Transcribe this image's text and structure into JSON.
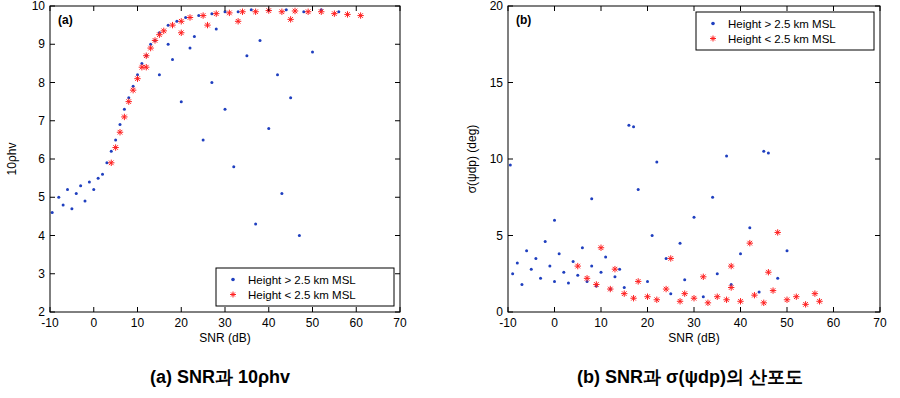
{
  "chart_data": [
    {
      "type": "scatter",
      "title": "(a) SNR과 10ρhv",
      "annotations": [
        "(a)"
      ],
      "x_label": "SNR (dB)",
      "y_label": "10ρhv",
      "xlim": [
        -10,
        70
      ],
      "xticks": [
        -10,
        0,
        10,
        20,
        30,
        40,
        50,
        60,
        70
      ],
      "ylim": [
        2,
        10
      ],
      "yticks": [
        2,
        3,
        4,
        5,
        6,
        7,
        8,
        9,
        10
      ],
      "grid": false,
      "legend": "lower right",
      "series": [
        {
          "name": "Height > 2.5 km MSL",
          "color": "#1f3fbf",
          "marker": "dot",
          "x": [
            -9.5,
            -8,
            -7,
            -6,
            -5,
            -4,
            -3,
            -2,
            -1,
            0,
            1,
            2,
            3,
            4,
            5,
            6,
            7,
            8,
            9,
            10,
            11,
            12,
            13,
            14,
            15,
            17,
            19,
            21,
            24,
            27,
            30,
            33,
            36,
            40,
            44,
            48,
            52,
            56,
            15,
            18,
            20,
            22,
            25,
            27,
            30,
            32,
            35,
            37,
            40,
            42,
            45,
            47,
            50,
            17,
            23,
            28,
            38,
            43
          ],
          "values": [
            4.6,
            5.0,
            4.8,
            5.2,
            4.7,
            5.1,
            5.3,
            4.9,
            5.4,
            5.2,
            5.5,
            5.6,
            5.9,
            6.2,
            6.5,
            6.9,
            7.3,
            7.6,
            7.9,
            8.2,
            8.5,
            8.7,
            9.0,
            9.1,
            9.3,
            9.5,
            9.6,
            9.7,
            9.75,
            9.8,
            9.85,
            9.85,
            9.9,
            9.88,
            9.9,
            9.85,
            9.9,
            9.85,
            8.2,
            8.6,
            7.5,
            8.9,
            6.5,
            8.0,
            7.3,
            5.8,
            8.7,
            4.3,
            6.8,
            8.2,
            7.6,
            4.0,
            8.8,
            9.0,
            9.2,
            9.4,
            9.1,
            5.1
          ]
        },
        {
          "name": "Height < 2.5 km MSL",
          "color": "#ff2020",
          "marker": "star",
          "x": [
            4,
            5,
            6,
            7,
            8,
            9,
            10,
            11,
            12,
            12,
            13,
            14,
            15,
            16,
            18,
            20,
            20,
            22,
            25,
            26,
            28,
            31,
            33,
            34,
            37,
            40,
            43,
            45,
            46,
            49,
            52,
            55,
            58,
            61
          ],
          "values": [
            5.9,
            6.3,
            6.7,
            7.1,
            7.5,
            7.8,
            8.1,
            8.4,
            8.7,
            8.4,
            8.9,
            9.1,
            9.25,
            9.35,
            9.5,
            9.6,
            9.3,
            9.7,
            9.75,
            9.5,
            9.8,
            9.82,
            9.6,
            9.85,
            9.85,
            9.88,
            9.85,
            9.65,
            9.87,
            9.85,
            9.85,
            9.8,
            9.78,
            9.75
          ]
        }
      ]
    },
    {
      "type": "scatter",
      "title": "(b) SNR과 σ(ψdp)의 산포도",
      "annotations": [
        "(b)"
      ],
      "x_label": "SNR (dB)",
      "y_label": "σ(ψdp) (deg)",
      "xlim": [
        -10,
        70
      ],
      "xticks": [
        -10,
        0,
        10,
        20,
        30,
        40,
        50,
        60,
        70
      ],
      "ylim": [
        0,
        20
      ],
      "yticks": [
        0,
        5,
        10,
        15,
        20
      ],
      "grid": false,
      "legend": "upper right",
      "series": [
        {
          "name": "Height > 2.5 km MSL",
          "color": "#1f3fbf",
          "marker": "dot",
          "x": [
            -9.5,
            -9,
            -8,
            -7,
            -6,
            -5,
            -4,
            -3,
            -2,
            -1,
            0,
            0,
            1,
            2,
            3,
            4,
            5,
            6,
            7,
            8,
            8,
            9,
            10,
            11,
            12,
            13,
            14,
            15,
            16,
            17,
            18,
            20,
            21,
            22,
            24,
            25,
            27,
            28,
            30,
            32,
            34,
            35,
            37,
            38,
            40,
            42,
            44,
            45,
            46,
            48,
            50
          ],
          "values": [
            9.6,
            2.5,
            3.2,
            1.8,
            4.0,
            2.8,
            3.5,
            2.2,
            4.6,
            3.0,
            2.0,
            6.0,
            3.8,
            2.6,
            1.9,
            3.3,
            2.4,
            4.2,
            2.0,
            3.0,
            7.4,
            1.7,
            2.6,
            3.6,
            1.5,
            2.3,
            2.8,
            1.6,
            12.2,
            12.1,
            8.0,
            2.0,
            5.0,
            9.8,
            3.5,
            1.2,
            4.5,
            2.1,
            6.2,
            1.0,
            7.5,
            2.5,
            10.2,
            1.8,
            3.8,
            5.5,
            1.3,
            10.5,
            10.4,
            2.2,
            4.0
          ]
        },
        {
          "name": "Height < 2.5 km MSL",
          "color": "#ff2020",
          "marker": "star",
          "x": [
            5,
            7,
            9,
            10,
            12,
            13,
            15,
            17,
            18,
            20,
            22,
            24,
            25,
            27,
            28,
            30,
            32,
            33,
            35,
            37,
            38,
            38,
            40,
            42,
            43,
            45,
            46,
            47,
            48,
            50,
            52,
            54,
            56,
            57
          ],
          "values": [
            3.0,
            2.2,
            1.8,
            4.2,
            1.5,
            2.8,
            1.2,
            0.9,
            2.0,
            1.0,
            0.8,
            1.5,
            3.5,
            0.7,
            1.2,
            0.9,
            2.3,
            0.6,
            1.0,
            0.8,
            1.6,
            3.0,
            0.7,
            4.5,
            1.1,
            0.6,
            2.6,
            1.4,
            5.2,
            0.8,
            1.0,
            0.5,
            1.2,
            0.7
          ]
        }
      ]
    }
  ]
}
